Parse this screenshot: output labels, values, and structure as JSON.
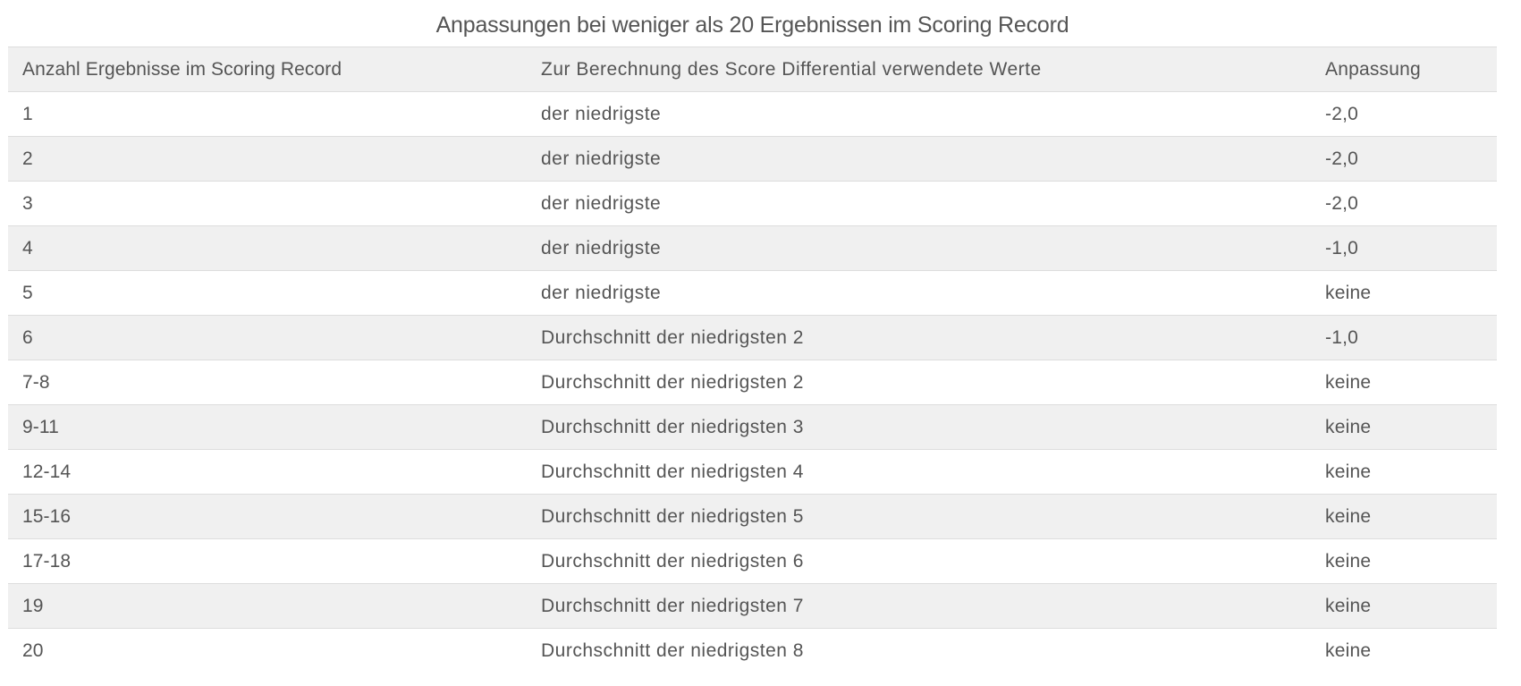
{
  "title": "Anpassungen bei weniger als 20 Ergebnissen im Scoring Record",
  "table": {
    "columns": [
      "Anzahl Ergebnisse im Scoring Record",
      "Zur Berechnung des Score Differential verwendete Werte",
      "Anpassung"
    ],
    "rows": [
      {
        "count": "1",
        "values_used": "der niedrigste",
        "adjustment": "-2,0"
      },
      {
        "count": "2",
        "values_used": "der niedrigste",
        "adjustment": "-2,0"
      },
      {
        "count": "3",
        "values_used": "der niedrigste",
        "adjustment": "-2,0"
      },
      {
        "count": "4",
        "values_used": "der niedrigste",
        "adjustment": "-1,0"
      },
      {
        "count": "5",
        "values_used": "der niedrigste",
        "adjustment": "keine"
      },
      {
        "count": "6",
        "values_used": "Durchschnitt der niedrigsten 2",
        "adjustment": "-1,0"
      },
      {
        "count": "7-8",
        "values_used": "Durchschnitt der niedrigsten 2",
        "adjustment": "keine"
      },
      {
        "count": "9-11",
        "values_used": "Durchschnitt der niedrigsten 3",
        "adjustment": "keine"
      },
      {
        "count": "12-14",
        "values_used": "Durchschnitt der niedrigsten 4",
        "adjustment": "keine"
      },
      {
        "count": "15-16",
        "values_used": "Durchschnitt der niedrigsten 5",
        "adjustment": "keine"
      },
      {
        "count": "17-18",
        "values_used": "Durchschnitt der niedrigsten 6",
        "adjustment": "keine"
      },
      {
        "count": "19",
        "values_used": "Durchschnitt der niedrigsten 7",
        "adjustment": "keine"
      },
      {
        "count": "20",
        "values_used": "Durchschnitt der niedrigsten 8",
        "adjustment": "keine"
      }
    ],
    "colors": {
      "stripe_background": "#f0f0f0",
      "row_border": "#dddddd",
      "text": "#555555"
    }
  }
}
